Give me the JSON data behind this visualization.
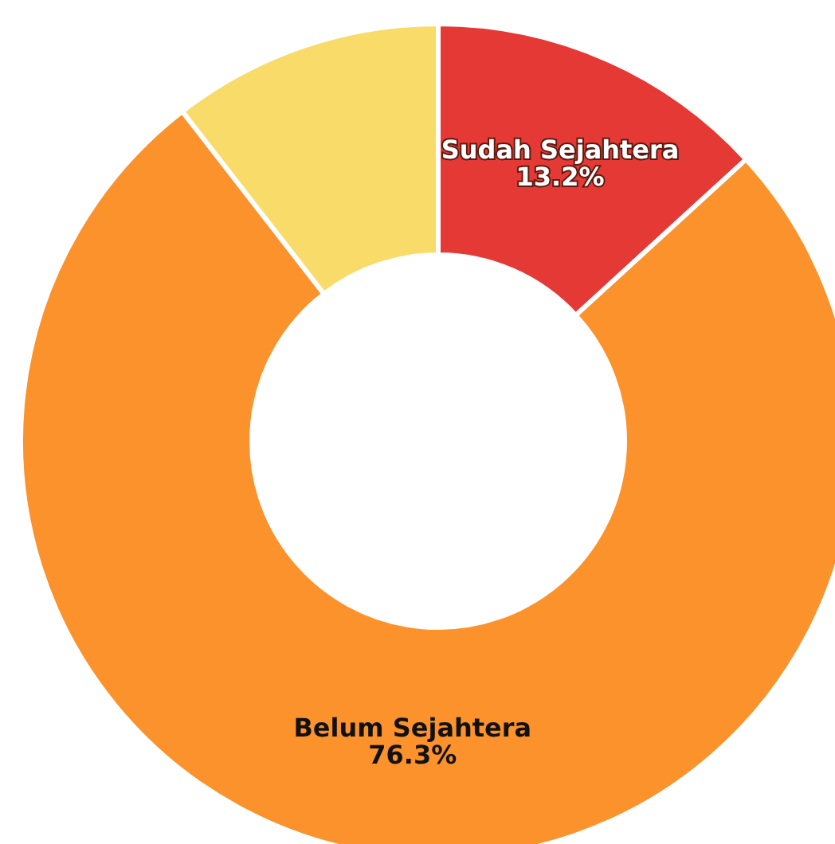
{
  "chart_data": {
    "type": "donut",
    "categories": [
      "Sudah Sejahtera",
      "Belum Sejahtera",
      null
    ],
    "values": [
      13.2,
      76.3,
      10.5
    ],
    "colors": [
      "#e53935",
      "#fb922b",
      "#f9db6a"
    ],
    "value_labels": [
      "13.2%",
      "76.3%",
      null
    ]
  }
}
